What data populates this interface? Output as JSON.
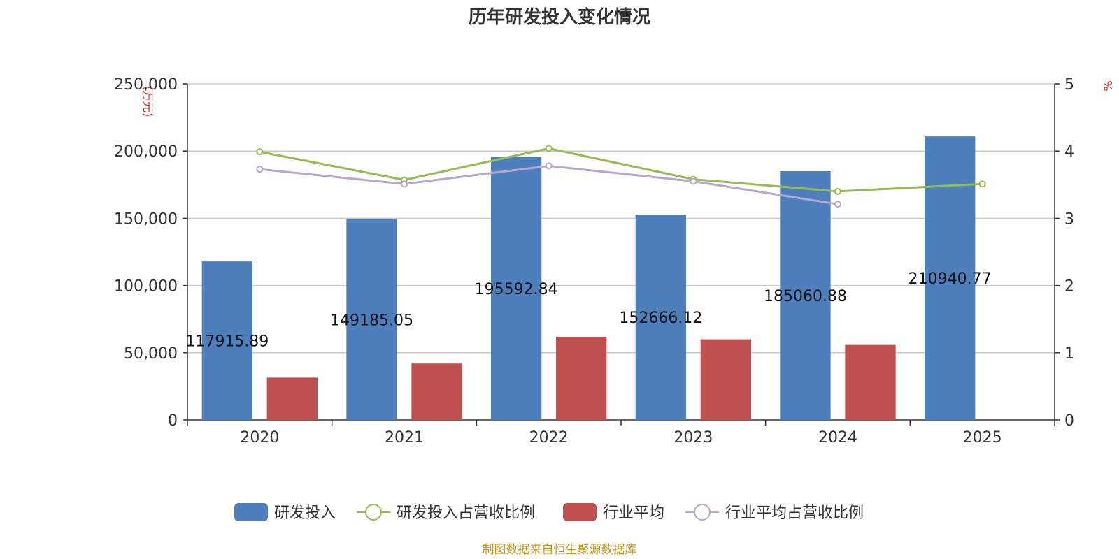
{
  "chart_data": {
    "type": "bar",
    "title": "历年研发投入变化情况",
    "categories": [
      "2020",
      "2021",
      "2022",
      "2023",
      "2024",
      "2025"
    ],
    "y_left": {
      "unit": "(万元)",
      "min": 0,
      "max": 250000,
      "ticks": [
        "0",
        "50,000",
        "100,000",
        "150,000",
        "200,000",
        "250,000"
      ]
    },
    "y_right": {
      "unit": "%",
      "min": 0,
      "max": 5,
      "ticks": [
        "0",
        "1",
        "2",
        "3",
        "4",
        "5"
      ]
    },
    "series": [
      {
        "name": "研发投入",
        "kind": "bar",
        "axis": "left",
        "color": "#4e7fbd",
        "values": [
          117915.89,
          149185.05,
          195592.84,
          152666.12,
          185060.88,
          210940.77
        ],
        "labels": [
          "117915.89",
          "149185.05",
          "195592.84",
          "152666.12",
          "185060.88",
          "210940.77"
        ]
      },
      {
        "name": "研发投入占营收比例",
        "kind": "line",
        "axis": "right",
        "color": "#97bb54",
        "values": [
          3.99,
          3.57,
          4.04,
          3.58,
          3.4,
          3.51
        ]
      },
      {
        "name": "行业平均",
        "kind": "bar",
        "axis": "left",
        "color": "#c0504d",
        "values": [
          31500,
          42000,
          61800,
          60000,
          55800,
          null
        ]
      },
      {
        "name": "行业平均占营收比例",
        "kind": "line",
        "axis": "right",
        "color": "#b7a7d2",
        "values": [
          3.73,
          3.51,
          3.78,
          3.55,
          3.21,
          null
        ]
      }
    ],
    "grid": true,
    "legend_position": "bottom"
  },
  "source": "制图数据来自恒生聚源数据库"
}
